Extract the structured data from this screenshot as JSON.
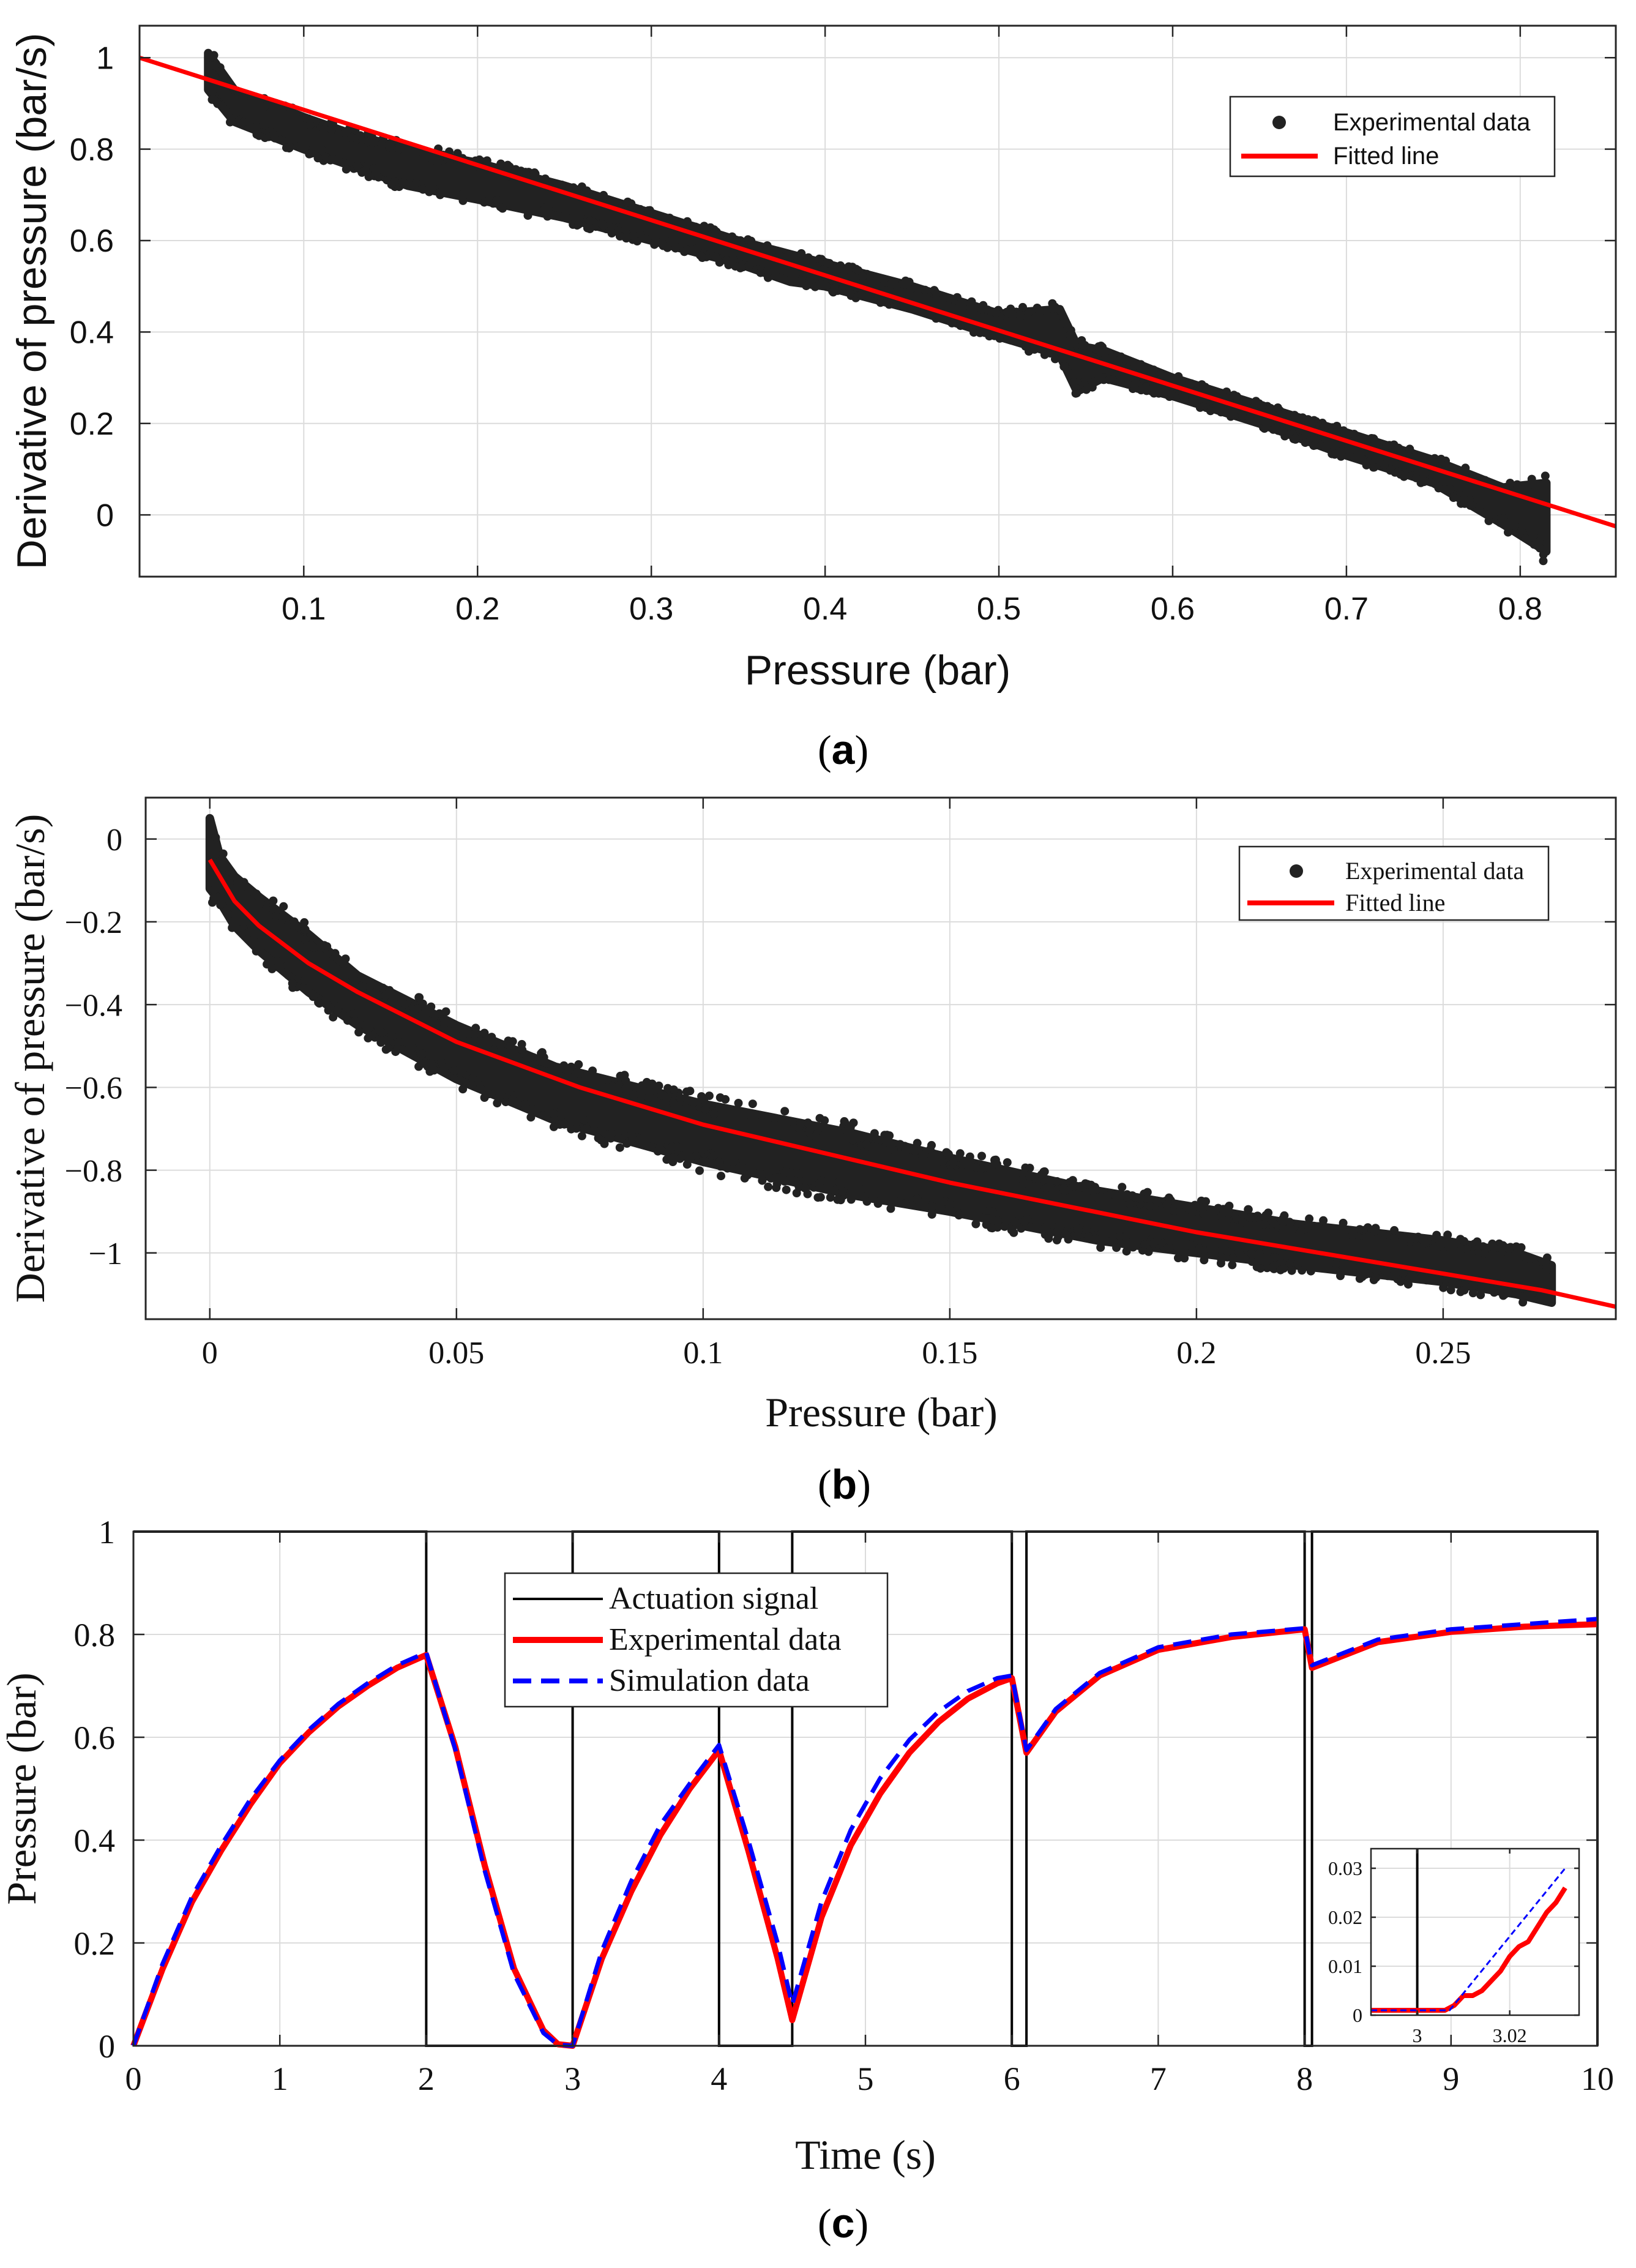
{
  "colors": {
    "scatter": "#222222",
    "fit": "#ff0000",
    "actuation": "#000000",
    "experimental": "#ff0000",
    "simulation": "#0000ff",
    "grid": "#dcdcdc",
    "axis": "#262626"
  },
  "chart_data": [
    {
      "id": "a",
      "type": "scatter",
      "panel_label": "a",
      "xlabel": "Pressure (bar)",
      "ylabel": "Derivative of pressure (bar/s)",
      "xlim": [
        0.0055,
        0.855
      ],
      "ylim": [
        -0.135,
        1.07
      ],
      "xticks": [
        0.1,
        0.2,
        0.3,
        0.4,
        0.5,
        0.6,
        0.7,
        0.8
      ],
      "xtick_labels": [
        "0.1",
        "0.2",
        "0.3",
        "0.4",
        "0.5",
        "0.6",
        "0.7",
        "0.8"
      ],
      "yticks": [
        0,
        0.2,
        0.4,
        0.6,
        0.8,
        1
      ],
      "ytick_labels": [
        "0",
        "0.2",
        "0.4",
        "0.6",
        "0.8",
        "1"
      ],
      "legend": {
        "position": "top-right",
        "entries": [
          "Experimental data",
          "Fitted line"
        ]
      },
      "series": [
        {
          "name": "Experimental data",
          "kind": "scatter-band",
          "x": [
            0.045,
            0.06,
            0.08,
            0.1,
            0.13,
            0.16,
            0.2,
            0.25,
            0.3,
            0.35,
            0.38,
            0.4,
            0.45,
            0.5,
            0.535,
            0.545,
            0.56,
            0.6,
            0.65,
            0.7,
            0.75,
            0.79,
            0.815
          ],
          "upper": [
            1.01,
            0.93,
            0.9,
            0.87,
            0.83,
            0.8,
            0.77,
            0.72,
            0.66,
            0.6,
            0.57,
            0.55,
            0.5,
            0.44,
            0.45,
            0.37,
            0.36,
            0.3,
            0.24,
            0.18,
            0.12,
            0.06,
            0.07
          ],
          "lower": [
            0.93,
            0.86,
            0.83,
            0.8,
            0.76,
            0.72,
            0.69,
            0.65,
            0.6,
            0.55,
            0.51,
            0.5,
            0.45,
            0.39,
            0.35,
            0.27,
            0.3,
            0.26,
            0.2,
            0.13,
            0.07,
            -0.02,
            -0.08
          ]
        },
        {
          "name": "Fitted line",
          "kind": "line",
          "x": [
            0.0055,
            0.855
          ],
          "y": [
            1.0,
            -0.025
          ]
        }
      ]
    },
    {
      "id": "b",
      "type": "scatter",
      "panel_label": "b",
      "xlabel": "Pressure (bar)",
      "ylabel": "Derivative of pressure (bar/s)",
      "xlim": [
        -0.013,
        0.285
      ],
      "ylim": [
        -1.16,
        0.1
      ],
      "xticks": [
        0,
        0.05,
        0.1,
        0.15,
        0.2,
        0.25
      ],
      "xtick_labels": [
        "0",
        "0.05",
        "0.1",
        "0.15",
        "0.2",
        "0.25"
      ],
      "yticks": [
        0,
        -0.2,
        -0.4,
        -0.6,
        -0.8,
        -1
      ],
      "ytick_labels": [
        "0",
        "−0.2",
        "−0.4",
        "−0.6",
        "−0.8",
        "−1"
      ],
      "legend": {
        "position": "top-right",
        "entries": [
          "Experimental data",
          "Fitted line"
        ]
      },
      "series": [
        {
          "name": "Experimental data",
          "kind": "scatter-band",
          "x": [
            0.0,
            0.002,
            0.005,
            0.01,
            0.02,
            0.03,
            0.05,
            0.07,
            0.1,
            0.13,
            0.15,
            0.18,
            0.2,
            0.22,
            0.25,
            0.265,
            0.272
          ],
          "upper": [
            0.05,
            -0.04,
            -0.09,
            -0.14,
            -0.23,
            -0.33,
            -0.45,
            -0.55,
            -0.64,
            -0.71,
            -0.77,
            -0.85,
            -0.89,
            -0.93,
            -0.97,
            -1.0,
            -1.03
          ],
          "lower": [
            -0.12,
            -0.15,
            -0.21,
            -0.27,
            -0.37,
            -0.45,
            -0.58,
            -0.68,
            -0.78,
            -0.86,
            -0.9,
            -0.97,
            -1.0,
            -1.03,
            -1.07,
            -1.1,
            -1.12
          ]
        },
        {
          "name": "Fitted line",
          "kind": "line",
          "x": [
            0.0,
            0.005,
            0.01,
            0.02,
            0.03,
            0.05,
            0.075,
            0.1,
            0.125,
            0.15,
            0.175,
            0.2,
            0.225,
            0.25,
            0.27,
            0.285
          ],
          "y": [
            -0.05,
            -0.15,
            -0.21,
            -0.3,
            -0.37,
            -0.49,
            -0.6,
            -0.69,
            -0.76,
            -0.83,
            -0.89,
            -0.95,
            -1.0,
            -1.05,
            -1.09,
            -1.13
          ]
        }
      ]
    },
    {
      "id": "c",
      "type": "line",
      "panel_label": "c",
      "xlabel": "Time (s)",
      "ylabel": "Pressure (bar)",
      "xlim": [
        0,
        10
      ],
      "ylim": [
        0,
        1
      ],
      "xticks": [
        0,
        1,
        2,
        3,
        4,
        5,
        6,
        7,
        8,
        9,
        10
      ],
      "xtick_labels": [
        "0",
        "1",
        "2",
        "3",
        "4",
        "5",
        "6",
        "7",
        "8",
        "9",
        "10"
      ],
      "yticks": [
        0,
        0.2,
        0.4,
        0.6,
        0.8,
        1
      ],
      "ytick_labels": [
        "0",
        "0.2",
        "0.4",
        "0.6",
        "0.8",
        "1"
      ],
      "legend": {
        "position": "top-center",
        "entries": [
          "Actuation signal",
          "Experimental data",
          "Simulation data"
        ]
      },
      "series": [
        {
          "name": "Actuation signal",
          "x": [
            0,
            2,
            2,
            3,
            3,
            4,
            4,
            4.5,
            4.5,
            6,
            6,
            6.1,
            6.1,
            8,
            8,
            8.05,
            8.05,
            10,
            10
          ],
          "y": [
            1,
            1,
            0,
            0,
            1,
            1,
            0,
            0,
            1,
            1,
            0,
            0,
            1,
            1,
            0,
            0,
            1,
            1,
            0
          ]
        },
        {
          "name": "Experimental data",
          "x": [
            0,
            0.2,
            0.4,
            0.6,
            0.8,
            1.0,
            1.2,
            1.4,
            1.6,
            1.8,
            2.0,
            2.2,
            2.4,
            2.6,
            2.8,
            2.9,
            3.0,
            3.2,
            3.4,
            3.6,
            3.8,
            4.0,
            4.2,
            4.4,
            4.5,
            4.7,
            4.9,
            5.1,
            5.3,
            5.5,
            5.7,
            5.9,
            6.0,
            6.1,
            6.3,
            6.6,
            7.0,
            7.5,
            8.0,
            8.05,
            8.5,
            9.0,
            9.5,
            10.0
          ],
          "y": [
            0,
            0.15,
            0.28,
            0.38,
            0.47,
            0.55,
            0.61,
            0.66,
            0.7,
            0.735,
            0.76,
            0.58,
            0.35,
            0.15,
            0.03,
            0.003,
            0.0,
            0.17,
            0.3,
            0.41,
            0.5,
            0.575,
            0.38,
            0.17,
            0.05,
            0.25,
            0.39,
            0.49,
            0.57,
            0.63,
            0.675,
            0.705,
            0.715,
            0.57,
            0.65,
            0.72,
            0.77,
            0.795,
            0.81,
            0.735,
            0.785,
            0.805,
            0.815,
            0.82
          ]
        },
        {
          "name": "Simulation data",
          "x": [
            0,
            0.2,
            0.4,
            0.6,
            0.8,
            1.0,
            1.2,
            1.4,
            1.6,
            1.8,
            2.0,
            2.2,
            2.4,
            2.6,
            2.8,
            2.9,
            3.0,
            3.2,
            3.4,
            3.6,
            3.8,
            4.0,
            4.2,
            4.4,
            4.5,
            4.7,
            4.9,
            5.1,
            5.3,
            5.5,
            5.7,
            5.9,
            6.0,
            6.1,
            6.3,
            6.6,
            7.0,
            7.5,
            8.0,
            8.05,
            8.5,
            9.0,
            9.5,
            10.0
          ],
          "y": [
            0,
            0.16,
            0.29,
            0.39,
            0.48,
            0.555,
            0.615,
            0.665,
            0.705,
            0.74,
            0.765,
            0.575,
            0.34,
            0.14,
            0.025,
            0.002,
            0.0,
            0.185,
            0.32,
            0.43,
            0.51,
            0.585,
            0.4,
            0.2,
            0.08,
            0.28,
            0.42,
            0.52,
            0.595,
            0.65,
            0.69,
            0.715,
            0.72,
            0.575,
            0.655,
            0.725,
            0.775,
            0.8,
            0.812,
            0.74,
            0.79,
            0.81,
            0.82,
            0.83
          ]
        }
      ],
      "inset": {
        "xlim": [
          2.99,
          3.035
        ],
        "ylim": [
          0,
          0.034
        ],
        "xticks": [
          3,
          3.02
        ],
        "xtick_labels": [
          "3",
          "3.02"
        ],
        "yticks": [
          0,
          0.01,
          0.02,
          0.03
        ],
        "ytick_labels": [
          "0",
          "0.01",
          "0.02",
          "0.03"
        ],
        "series": [
          {
            "name": "Actuation signal",
            "x": [
              3.0,
              3.0
            ],
            "y": [
              0,
              0.034
            ]
          },
          {
            "name": "Experimental data",
            "x": [
              2.99,
              3.006,
              3.008,
              3.01,
              3.012,
              3.014,
              3.016,
              3.018,
              3.02,
              3.022,
              3.024,
              3.026,
              3.028,
              3.03,
              3.032
            ],
            "y": [
              0.001,
              0.001,
              0.002,
              0.004,
              0.004,
              0.005,
              0.007,
              0.009,
              0.012,
              0.014,
              0.015,
              0.018,
              0.021,
              0.023,
              0.026
            ]
          },
          {
            "name": "Simulation data",
            "x": [
              2.99,
              3.007,
              3.032
            ],
            "y": [
              0.001,
              0.001,
              0.03
            ]
          }
        ]
      }
    }
  ]
}
